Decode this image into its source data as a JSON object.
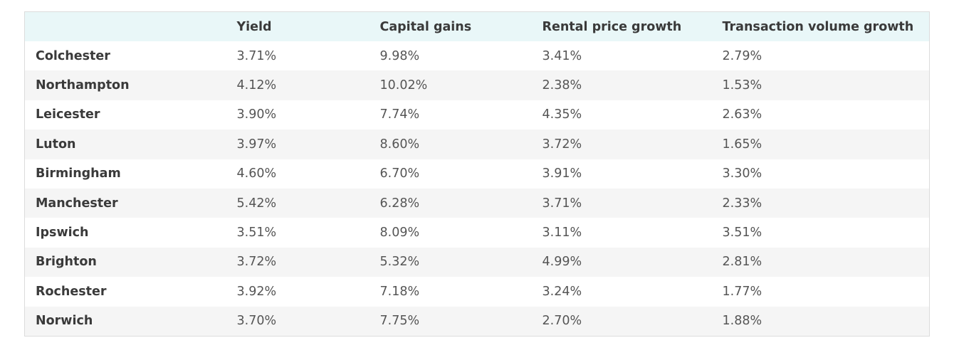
{
  "table": {
    "header": [
      "Yield",
      "Capital gains",
      "Rental price growth",
      "Transaction volume growth"
    ],
    "rows": [
      [
        "Colchester",
        "3.71%",
        "9.98%",
        "3.41%",
        "2.79%"
      ],
      [
        "Northampton",
        "4.12%",
        "10.02%",
        "2.38%",
        "1.53%"
      ],
      [
        "Leicester",
        "3.90%",
        "7.74%",
        "4.35%",
        "2.63%"
      ],
      [
        "Luton",
        "3.97%",
        "8.60%",
        "3.72%",
        "1.65%"
      ],
      [
        "Birmingham",
        "4.60%",
        "6.70%",
        "3.91%",
        "3.30%"
      ],
      [
        "Manchester",
        "5.42%",
        "6.28%",
        "3.71%",
        "2.33%"
      ],
      [
        "Ipswich",
        "3.51%",
        "8.09%",
        "3.11%",
        "3.51%"
      ],
      [
        "Brighton",
        "3.72%",
        "5.32%",
        "4.99%",
        "2.81%"
      ],
      [
        "Rochester",
        "3.92%",
        "7.18%",
        "3.24%",
        "1.77%"
      ],
      [
        "Norwich",
        "3.70%",
        "7.75%",
        "2.70%",
        "1.88%"
      ]
    ]
  }
}
